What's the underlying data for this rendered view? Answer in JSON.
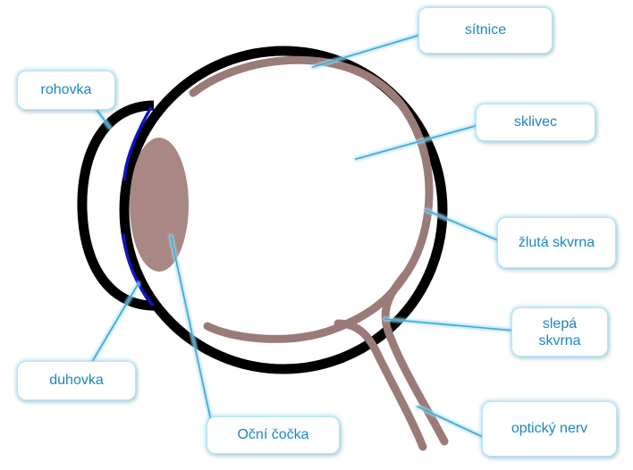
{
  "labels": {
    "sitnice": "sítnice",
    "rohovka": "rohovka",
    "sklivec": "sklivec",
    "zluta_skvrna": "žlutá skvrna",
    "slepa_skvrna": "slepá skvrna",
    "duhovka": "duhovka",
    "ocni_cocka": "Oční čočka",
    "opticky_nerv": "optický nerv"
  },
  "colors": {
    "sclera": "#000000",
    "retina": "#9b7b78",
    "lens": "#a88784",
    "iris": "#1212c8",
    "callout_text": "#1a88bf",
    "callout_glow": "#7cc8ea",
    "leader": "#3aa9d8"
  }
}
